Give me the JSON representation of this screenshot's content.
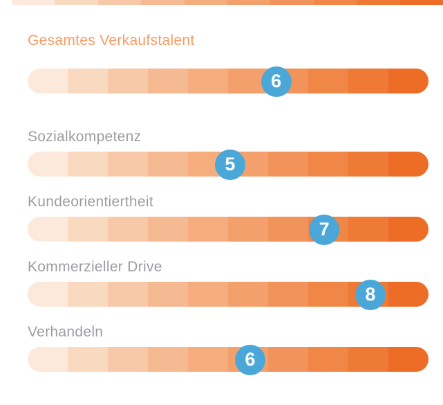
{
  "chart_data": {
    "type": "bar",
    "subtype": "horizontal-score-scale",
    "scale_min": 0,
    "scale_max": 10,
    "segments_per_bar": 10,
    "grid": false,
    "legend": false,
    "categories": [
      "Gesamtes Verkaufstalent",
      "Sozialkompetenz",
      "Kundeorientiertheit",
      "Kommerzieller Drive",
      "Verhandeln"
    ],
    "values": [
      6,
      5,
      7,
      8,
      6
    ],
    "rows": [
      {
        "label": "Gesamtes Verkaufstalent",
        "score": "6",
        "position": 6.2,
        "emphasis": true
      },
      {
        "label": "Sozialkompetenz",
        "score": "5",
        "position": 5.05,
        "emphasis": false
      },
      {
        "label": "Kundeorientiertheit",
        "score": "7",
        "position": 7.4,
        "emphasis": false
      },
      {
        "label": "Kommerzieller Drive",
        "score": "8",
        "position": 8.55,
        "emphasis": false
      },
      {
        "label": "Verhandeln",
        "score": "6",
        "position": 5.55,
        "emphasis": false
      }
    ],
    "colors": {
      "title_text": "#F89B62",
      "label_text": "#9B9DA0",
      "badge_fill": "#4BA7D7",
      "badge_text": "#FFFFFF",
      "bar_segments": [
        "#FCE9DC",
        "#FAD9C1",
        "#F8C9A8",
        "#F6BA92",
        "#F5AD7E",
        "#F3A06C",
        "#F1935A",
        "#F08747",
        "#EE7A36",
        "#ED6C26"
      ]
    }
  }
}
